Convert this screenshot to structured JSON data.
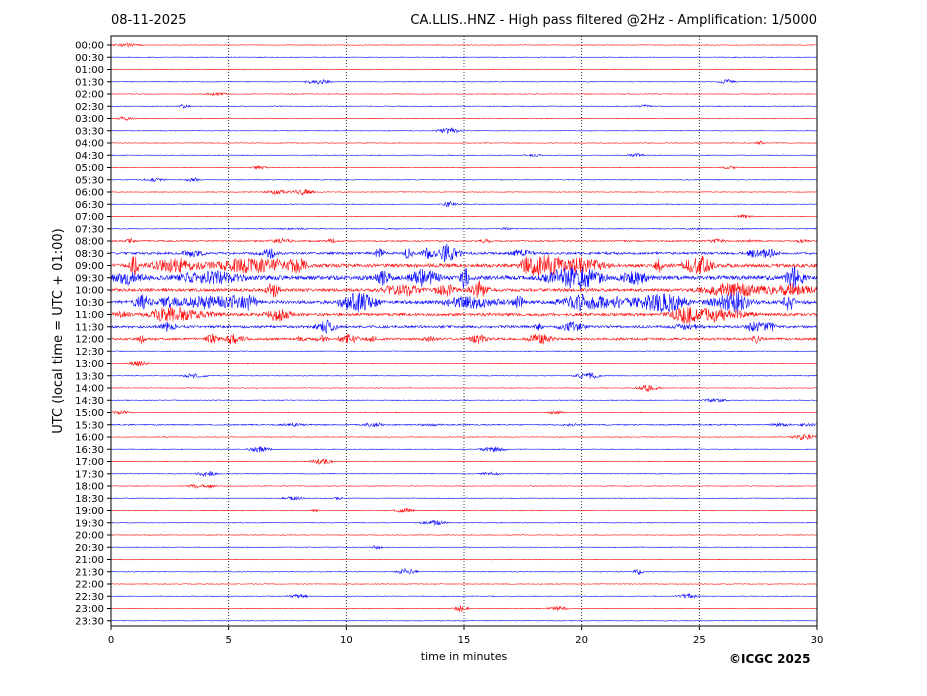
{
  "header": {
    "date": "08-11-2025",
    "title": "CA.LLIS..HNZ - High pass filtered @2Hz - Amplification: 1/5000"
  },
  "footer": {
    "copyright": "©ICGC 2025"
  },
  "chart_data": {
    "type": "line",
    "title": "CA.LLIS..HNZ - High pass filtered @2Hz - Amplification: 1/5000",
    "xlabel": "time in minutes",
    "ylabel": "UTC (local time = UTC + 01:00)",
    "xlim": [
      0,
      30
    ],
    "x_ticks": [
      0,
      5,
      10,
      15,
      20,
      25,
      30
    ],
    "y_ticks": [
      "00:00",
      "00:30",
      "01:00",
      "01:30",
      "02:00",
      "02:30",
      "03:00",
      "03:30",
      "04:00",
      "04:30",
      "05:00",
      "05:30",
      "06:00",
      "06:30",
      "07:00",
      "07:30",
      "08:00",
      "08:30",
      "09:00",
      "09:30",
      "10:00",
      "10:30",
      "11:00",
      "11:30",
      "12:00",
      "12:30",
      "13:00",
      "13:30",
      "14:00",
      "14:30",
      "15:00",
      "15:30",
      "16:00",
      "16:30",
      "17:00",
      "17:30",
      "18:00",
      "18:30",
      "19:00",
      "19:30",
      "20:00",
      "20:30",
      "21:00",
      "21:30",
      "22:00",
      "22:30",
      "23:00",
      "23:30"
    ],
    "grid_x": "dotted vertical lines every 5 minutes",
    "colors": {
      "even_trace": "#ff0000",
      "odd_trace": "#0000ff",
      "grid": "#000000"
    },
    "activity": [
      {
        "trace": "07:30",
        "level": 0.05
      },
      {
        "trace": "08:00",
        "level": 0.2
      },
      {
        "trace": "08:30",
        "level": 0.45
      },
      {
        "trace": "09:00",
        "level": 0.8
      },
      {
        "trace": "09:30",
        "level": 1.0
      },
      {
        "trace": "10:00",
        "level": 0.65
      },
      {
        "trace": "10:30",
        "level": 0.75
      },
      {
        "trace": "11:00",
        "level": 0.6
      },
      {
        "trace": "11:30",
        "level": 0.5
      },
      {
        "trace": "12:00",
        "level": 0.45
      },
      {
        "trace": "15:30",
        "level": 0.15
      }
    ]
  }
}
